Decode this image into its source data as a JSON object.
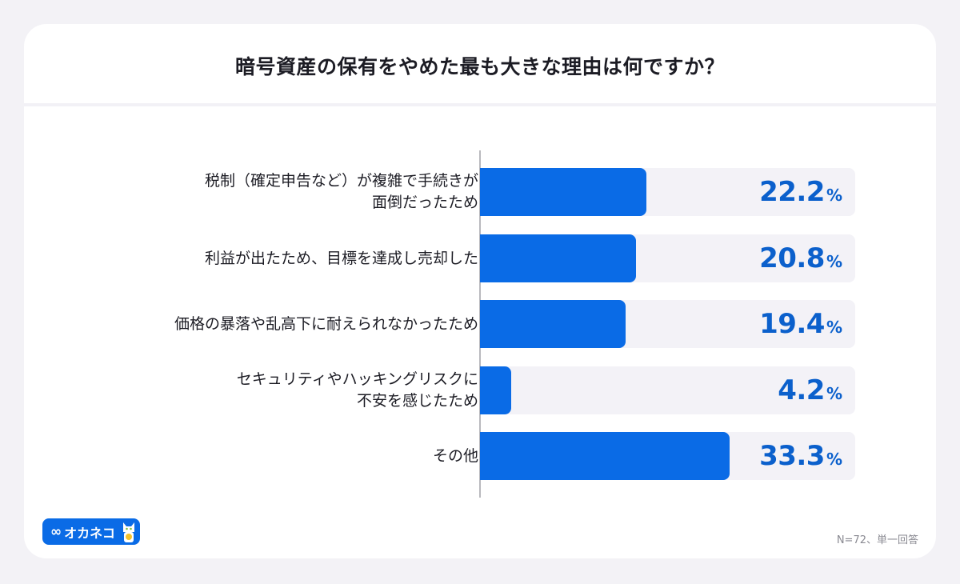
{
  "title": "暗号資産の保有をやめた最も大きな理由は何ですか？",
  "colors": {
    "background": "#f3f2f6",
    "card": "#ffffff",
    "bar": "#0a6be6",
    "track": "#f3f2f7",
    "value_text": "#0b60cc",
    "axis": "#b9b9be"
  },
  "rows": [
    {
      "label": "税制（確定申告など）が複雑で手続きが\n面倒だったため",
      "value": "22.2",
      "unit": "%"
    },
    {
      "label": "利益が出たため、目標を達成し売却した",
      "value": "20.8",
      "unit": "%"
    },
    {
      "label": "価格の暴落や乱高下に耐えられなかったため",
      "value": "19.4",
      "unit": "%"
    },
    {
      "label": "セキュリティやハッキングリスクに\n不安を感じたため",
      "value": "4.2",
      "unit": "%"
    },
    {
      "label": "その他",
      "value": "33.3",
      "unit": "%"
    }
  ],
  "logo": {
    "text": "オカネコ",
    "icon": "infinity-icon"
  },
  "note": "N=72、単一回答",
  "chart_data": {
    "type": "bar",
    "orientation": "horizontal",
    "title": "暗号資産の保有をやめた最も大きな理由は何ですか？",
    "categories": [
      "税制（確定申告など）が複雑で手続きが面倒だったため",
      "利益が出たため、目標を達成し売却した",
      "価格の暴落や乱高下に耐えられなかったため",
      "セキュリティやハッキングリスクに不安を感じたため",
      "その他"
    ],
    "values": [
      22.2,
      20.8,
      19.4,
      4.2,
      33.3
    ],
    "unit": "%",
    "xlabel": "",
    "ylabel": "",
    "xlim": [
      0,
      50
    ],
    "grid": false,
    "legend": null,
    "annotations": [
      "N=72、単一回答"
    ]
  }
}
